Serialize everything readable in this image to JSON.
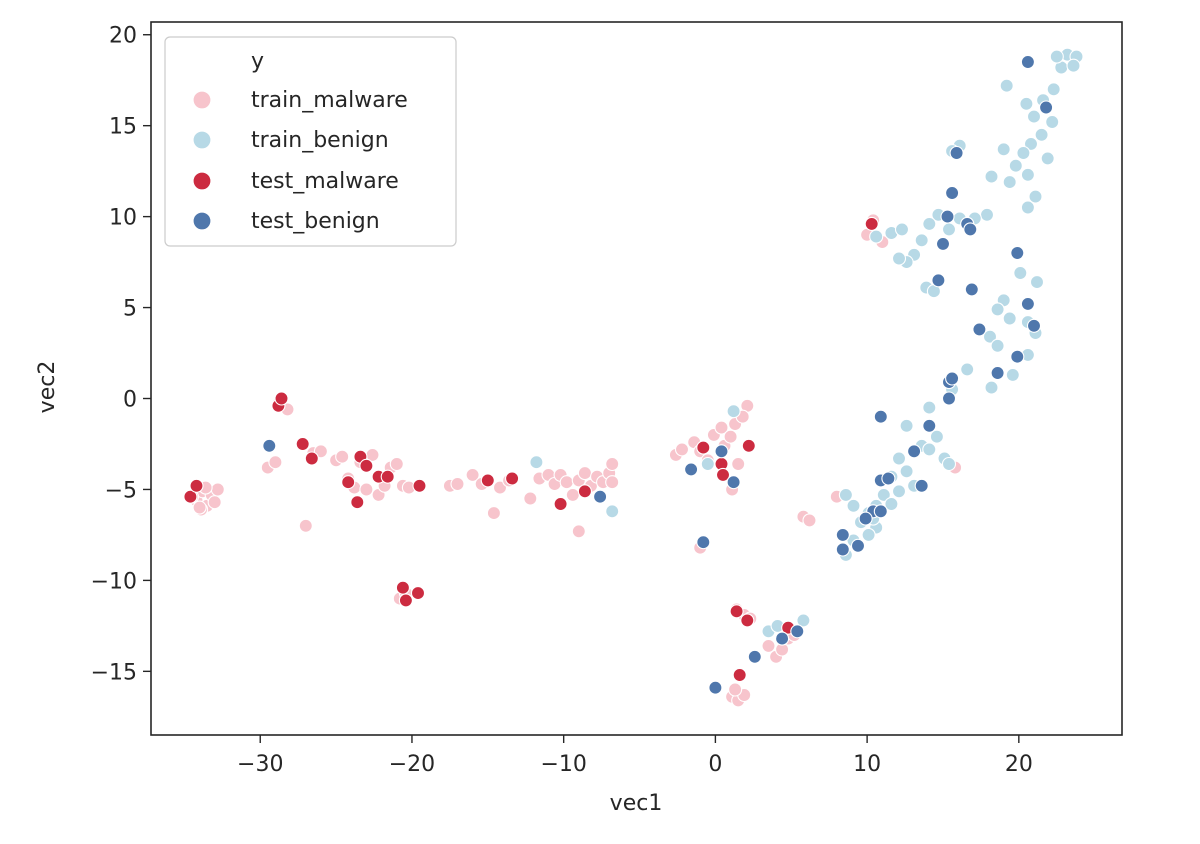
{
  "chart_data": {
    "type": "scatter",
    "title": "",
    "xlabel": "vec1",
    "ylabel": "vec2",
    "xlim": [
      -37.2,
      26.8
    ],
    "ylim": [
      -18.5,
      20.7
    ],
    "xticks": [
      -30,
      -20,
      -10,
      0,
      10,
      20
    ],
    "xtick_labels": [
      "−30",
      "−20",
      "−10",
      "0",
      "10",
      "20"
    ],
    "yticks": [
      -15,
      -10,
      -5,
      0,
      5,
      10,
      15,
      20
    ],
    "ytick_labels": [
      "−15",
      "−10",
      "−5",
      "0",
      "5",
      "10",
      "15",
      "20"
    ],
    "grid": false,
    "legend": {
      "title": "y",
      "position": "top-left",
      "entries": [
        "train_malware",
        "train_benign",
        "test_malware",
        "test_benign"
      ]
    },
    "series": [
      {
        "name": "train_malware",
        "color": "#f7c4cc",
        "points": [
          [
            -34.2,
            -5.6
          ],
          [
            -33.8,
            -5.1
          ],
          [
            -33.5,
            -5.9
          ],
          [
            -33.2,
            -5.3
          ],
          [
            -33.9,
            -6.1
          ],
          [
            -34.5,
            -5.4
          ],
          [
            -33.0,
            -5.7
          ],
          [
            -32.8,
            -5.0
          ],
          [
            -33.6,
            -4.9
          ],
          [
            -34.0,
            -6.0
          ],
          [
            -29.5,
            -3.8
          ],
          [
            -29.0,
            -3.5
          ],
          [
            -28.6,
            0.0
          ],
          [
            -28.2,
            -0.6
          ],
          [
            -28.8,
            -0.3
          ],
          [
            -27.0,
            -7.0
          ],
          [
            -26.5,
            -3.0
          ],
          [
            -26.0,
            -2.9
          ],
          [
            -25.0,
            -3.4
          ],
          [
            -24.6,
            -3.2
          ],
          [
            -24.2,
            -4.4
          ],
          [
            -23.8,
            -4.9
          ],
          [
            -23.4,
            -3.5
          ],
          [
            -23.0,
            -5.0
          ],
          [
            -22.6,
            -3.1
          ],
          [
            -22.2,
            -5.3
          ],
          [
            -21.8,
            -4.8
          ],
          [
            -21.4,
            -3.8
          ],
          [
            -21.0,
            -3.6
          ],
          [
            -20.6,
            -4.8
          ],
          [
            -20.2,
            -4.9
          ],
          [
            -20.8,
            -11.0
          ],
          [
            -20.4,
            -10.7
          ],
          [
            -17.5,
            -4.8
          ],
          [
            -17.0,
            -4.7
          ],
          [
            -16.0,
            -4.2
          ],
          [
            -15.4,
            -4.7
          ],
          [
            -14.6,
            -6.3
          ],
          [
            -14.2,
            -4.9
          ],
          [
            -13.6,
            -4.5
          ],
          [
            -12.2,
            -5.5
          ],
          [
            -11.6,
            -4.4
          ],
          [
            -11.0,
            -4.2
          ],
          [
            -10.6,
            -4.7
          ],
          [
            -10.2,
            -4.2
          ],
          [
            -9.8,
            -4.6
          ],
          [
            -9.4,
            -5.3
          ],
          [
            -9.0,
            -4.5
          ],
          [
            -8.6,
            -4.1
          ],
          [
            -8.2,
            -4.8
          ],
          [
            -7.8,
            -4.3
          ],
          [
            -7.4,
            -4.6
          ],
          [
            -7.0,
            -4.1
          ],
          [
            -6.8,
            -3.6
          ],
          [
            -6.8,
            -4.6
          ],
          [
            -9.0,
            -7.3
          ],
          [
            -2.6,
            -3.1
          ],
          [
            -2.2,
            -2.8
          ],
          [
            -1.4,
            -2.4
          ],
          [
            -1.0,
            -2.9
          ],
          [
            -0.5,
            -3.4
          ],
          [
            -0.1,
            -2.0
          ],
          [
            0.4,
            -1.6
          ],
          [
            0.6,
            -2.6
          ],
          [
            1.0,
            -2.1
          ],
          [
            1.3,
            -1.4
          ],
          [
            1.5,
            -3.6
          ],
          [
            1.1,
            -5.0
          ],
          [
            -1.0,
            -8.2
          ],
          [
            2.1,
            -0.4
          ],
          [
            1.8,
            -1.0
          ],
          [
            5.8,
            -6.5
          ],
          [
            6.2,
            -6.7
          ],
          [
            8.0,
            -5.4
          ],
          [
            10.0,
            9.0
          ],
          [
            10.4,
            9.8
          ],
          [
            11.0,
            8.6
          ],
          [
            15.8,
            -3.8
          ],
          [
            1.4,
            -11.6
          ],
          [
            1.9,
            -11.9
          ],
          [
            2.3,
            -12.1
          ],
          [
            1.1,
            -16.4
          ],
          [
            1.5,
            -16.6
          ],
          [
            1.9,
            -16.3
          ],
          [
            1.3,
            -16.0
          ],
          [
            3.5,
            -13.6
          ],
          [
            4.0,
            -14.2
          ],
          [
            4.4,
            -13.8
          ],
          [
            4.8,
            -13.2
          ],
          [
            5.2,
            -13.0
          ]
        ]
      },
      {
        "name": "train_benign",
        "color": "#b7d9e6",
        "points": [
          [
            23.2,
            18.9
          ],
          [
            23.8,
            18.8
          ],
          [
            22.8,
            18.2
          ],
          [
            22.3,
            17.0
          ],
          [
            21.6,
            16.4
          ],
          [
            21.0,
            15.5
          ],
          [
            20.5,
            16.2
          ],
          [
            19.2,
            17.2
          ],
          [
            21.5,
            14.5
          ],
          [
            20.8,
            14.0
          ],
          [
            22.2,
            15.2
          ],
          [
            21.9,
            13.2
          ],
          [
            20.3,
            13.5
          ],
          [
            19.8,
            12.8
          ],
          [
            20.6,
            12.3
          ],
          [
            19.4,
            11.9
          ],
          [
            18.2,
            12.2
          ],
          [
            21.1,
            11.1
          ],
          [
            20.6,
            10.5
          ],
          [
            19.0,
            13.7
          ],
          [
            23.6,
            18.3
          ],
          [
            22.5,
            18.8
          ],
          [
            16.1,
            13.9
          ],
          [
            15.6,
            13.6
          ],
          [
            17.9,
            10.1
          ],
          [
            17.1,
            9.9
          ],
          [
            16.6,
            9.6
          ],
          [
            16.1,
            9.9
          ],
          [
            15.4,
            9.3
          ],
          [
            14.7,
            10.1
          ],
          [
            14.1,
            9.6
          ],
          [
            13.6,
            8.7
          ],
          [
            13.1,
            7.9
          ],
          [
            12.6,
            7.5
          ],
          [
            12.1,
            7.7
          ],
          [
            11.6,
            9.1
          ],
          [
            12.3,
            9.3
          ],
          [
            13.9,
            6.1
          ],
          [
            14.4,
            5.9
          ],
          [
            10.6,
            8.9
          ],
          [
            19.0,
            5.4
          ],
          [
            20.1,
            6.9
          ],
          [
            21.2,
            6.4
          ],
          [
            18.6,
            4.9
          ],
          [
            19.4,
            4.4
          ],
          [
            20.6,
            4.2
          ],
          [
            21.1,
            3.6
          ],
          [
            18.1,
            3.4
          ],
          [
            16.6,
            1.6
          ],
          [
            18.6,
            2.9
          ],
          [
            19.6,
            1.3
          ],
          [
            20.6,
            2.4
          ],
          [
            18.2,
            0.6
          ],
          [
            15.6,
            0.5
          ],
          [
            14.1,
            -0.5
          ],
          [
            12.6,
            -1.5
          ],
          [
            14.6,
            -2.1
          ],
          [
            13.6,
            -2.6
          ],
          [
            14.1,
            -2.8
          ],
          [
            15.1,
            -3.3
          ],
          [
            15.4,
            -3.6
          ],
          [
            12.1,
            -3.3
          ],
          [
            12.6,
            -4.0
          ],
          [
            13.1,
            -4.8
          ],
          [
            11.6,
            -4.3
          ],
          [
            12.1,
            -5.1
          ],
          [
            11.1,
            -5.3
          ],
          [
            10.6,
            -5.9
          ],
          [
            10.1,
            -6.3
          ],
          [
            9.6,
            -6.8
          ],
          [
            10.6,
            -7.1
          ],
          [
            10.1,
            -7.5
          ],
          [
            9.1,
            -7.8
          ],
          [
            8.6,
            -8.6
          ],
          [
            9.1,
            -5.9
          ],
          [
            8.6,
            -5.3
          ],
          [
            11.6,
            -5.8
          ],
          [
            10.4,
            -6.6
          ],
          [
            -11.8,
            -3.5
          ],
          [
            -6.8,
            -6.2
          ],
          [
            1.2,
            -0.7
          ],
          [
            -0.5,
            -3.6
          ],
          [
            3.5,
            -12.8
          ],
          [
            4.1,
            -12.5
          ],
          [
            5.8,
            -12.2
          ]
        ]
      },
      {
        "name": "test_malware",
        "color": "#cc2b40",
        "points": [
          [
            -34.6,
            -5.4
          ],
          [
            -34.2,
            -4.8
          ],
          [
            -28.8,
            -0.4
          ],
          [
            -28.6,
            0.0
          ],
          [
            -27.2,
            -2.5
          ],
          [
            -26.6,
            -3.3
          ],
          [
            -24.2,
            -4.6
          ],
          [
            -23.6,
            -5.7
          ],
          [
            -23.4,
            -3.2
          ],
          [
            -23.0,
            -3.7
          ],
          [
            -22.2,
            -4.3
          ],
          [
            -21.6,
            -4.3
          ],
          [
            -19.5,
            -4.8
          ],
          [
            -20.6,
            -10.4
          ],
          [
            -20.4,
            -11.1
          ],
          [
            -19.6,
            -10.7
          ],
          [
            -15.0,
            -4.5
          ],
          [
            -13.4,
            -4.4
          ],
          [
            -10.2,
            -5.8
          ],
          [
            -8.6,
            -5.1
          ],
          [
            -0.8,
            -2.7
          ],
          [
            0.4,
            -3.6
          ],
          [
            0.5,
            -4.2
          ],
          [
            2.2,
            -2.6
          ],
          [
            10.3,
            9.6
          ],
          [
            1.4,
            -11.7
          ],
          [
            2.1,
            -12.2
          ],
          [
            1.6,
            -15.2
          ],
          [
            4.8,
            -12.6
          ]
        ]
      },
      {
        "name": "test_benign",
        "color": "#4f77ac",
        "points": [
          [
            20.6,
            18.5
          ],
          [
            21.8,
            16.0
          ],
          [
            15.9,
            13.5
          ],
          [
            15.6,
            11.3
          ],
          [
            15.3,
            10.0
          ],
          [
            16.6,
            9.6
          ],
          [
            16.8,
            9.3
          ],
          [
            19.9,
            8.0
          ],
          [
            15.0,
            8.5
          ],
          [
            14.7,
            6.5
          ],
          [
            16.9,
            6.0
          ],
          [
            17.4,
            3.8
          ],
          [
            20.6,
            5.2
          ],
          [
            21.0,
            4.0
          ],
          [
            19.9,
            2.3
          ],
          [
            18.6,
            1.4
          ],
          [
            15.4,
            0.9
          ],
          [
            15.6,
            1.1
          ],
          [
            15.4,
            0.0
          ],
          [
            10.9,
            -1.0
          ],
          [
            14.1,
            -1.5
          ],
          [
            13.1,
            -2.9
          ],
          [
            10.9,
            -4.5
          ],
          [
            11.4,
            -4.4
          ],
          [
            13.6,
            -4.8
          ],
          [
            10.4,
            -6.2
          ],
          [
            9.9,
            -6.6
          ],
          [
            10.9,
            -6.2
          ],
          [
            9.4,
            -8.1
          ],
          [
            8.4,
            -7.5
          ],
          [
            8.4,
            -8.3
          ],
          [
            -29.4,
            -2.6
          ],
          [
            -7.6,
            -5.4
          ],
          [
            -1.6,
            -3.9
          ],
          [
            0.4,
            -2.9
          ],
          [
            1.2,
            -4.6
          ],
          [
            -0.8,
            -7.9
          ],
          [
            2.6,
            -14.2
          ],
          [
            4.4,
            -13.2
          ],
          [
            5.4,
            -12.8
          ],
          [
            0.0,
            -15.9
          ]
        ]
      }
    ]
  }
}
